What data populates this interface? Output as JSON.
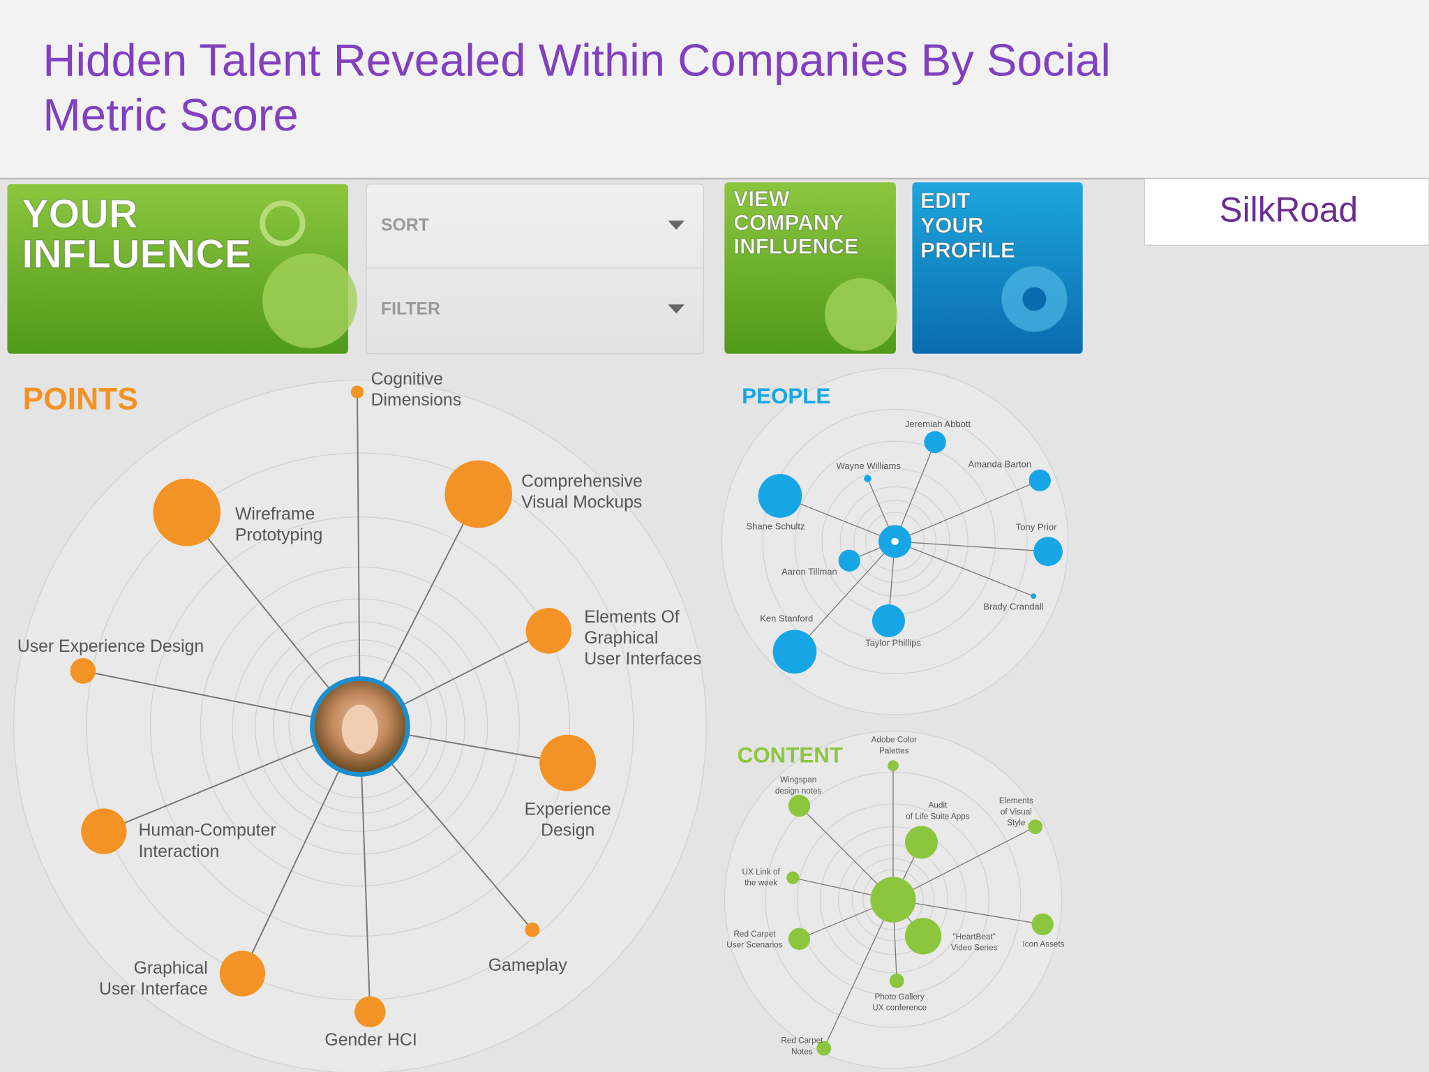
{
  "header": {
    "title_lines": [
      "Hidden Talent Revealed Within Companies By Social",
      "Metric Score"
    ],
    "brand": "SilkRoad"
  },
  "tiles": [
    {
      "lines": [
        "YOUR",
        "INFLUENCE"
      ]
    },
    {
      "lines": [
        "VIEW",
        "COMPANY",
        "INFLUENCE"
      ]
    },
    {
      "lines": [
        "EDIT",
        "YOUR",
        "PROFILE"
      ]
    }
  ],
  "controls": [
    "SORT",
    "FILTER"
  ],
  "points": {
    "title": "POINTS",
    "nodes": [
      {
        "label": [
          "Cognitive",
          "Dimensions"
        ]
      },
      {
        "label": [
          "Comprehensive",
          "Visual Mockups"
        ]
      },
      {
        "label": [
          "Wireframe",
          "Prototyping"
        ]
      },
      {
        "label": [
          "Elements Of",
          "Graphical",
          "User Interfaces"
        ]
      },
      {
        "label": [
          "User Experience Design"
        ]
      },
      {
        "label": [
          "Experience",
          "Design"
        ]
      },
      {
        "label": [
          "Human-Computer",
          "Interaction"
        ]
      },
      {
        "label": [
          "Gameplay"
        ]
      },
      {
        "label": [
          "Graphical",
          "User Interface"
        ]
      },
      {
        "label": [
          "Gender HCI"
        ]
      }
    ]
  },
  "people": {
    "title": "PEOPLE",
    "nodes": [
      {
        "label": [
          "Jeremiah Abbott"
        ]
      },
      {
        "label": [
          "Wayne Williams"
        ]
      },
      {
        "label": [
          "Amanda Barton"
        ]
      },
      {
        "label": [
          "Shane Schultz"
        ]
      },
      {
        "label": [
          "Tony Prior"
        ]
      },
      {
        "label": [
          "Aaron Tillman"
        ]
      },
      {
        "label": [
          "Brady Crandall"
        ]
      },
      {
        "label": [
          "Ken Stanford"
        ]
      },
      {
        "label": [
          "Taylor Phillips"
        ]
      }
    ]
  },
  "content": {
    "title": "CONTENT",
    "nodes": [
      {
        "label": [
          "Adobe Color",
          "Palettes"
        ]
      },
      {
        "label": [
          "Wingspan",
          "design notes"
        ]
      },
      {
        "label": [
          "Audit",
          "of Life Suite Apps"
        ]
      },
      {
        "label": [
          "Elements",
          "of Visual",
          "Style"
        ]
      },
      {
        "label": [
          "UX Link of",
          "the week"
        ]
      },
      {
        "label": [
          "Red Carpet",
          "User Scenarios"
        ]
      },
      {
        "label": [
          "\"HeartBeat\"",
          "Video Series"
        ]
      },
      {
        "label": [
          "Icon Assets"
        ]
      },
      {
        "label": [
          "Photo Gallery",
          "UX conference"
        ]
      },
      {
        "label": [
          "Red Carpet",
          "Notes"
        ]
      }
    ]
  }
}
